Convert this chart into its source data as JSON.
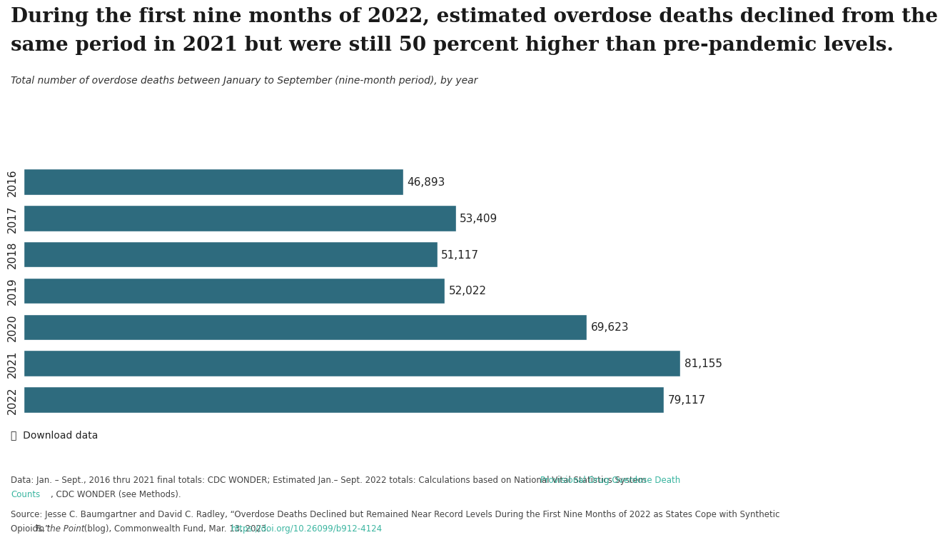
{
  "title_line1": "During the first nine months of 2022, estimated overdose deaths declined from the",
  "title_line2": "same period in 2021 but were still 50 percent higher than pre-pandemic levels.",
  "subtitle": "Total number of overdose deaths between January to September (nine-month period), by year",
  "years": [
    "2016",
    "2017",
    "2018",
    "2019",
    "2020",
    "2021",
    "2022"
  ],
  "values": [
    46893,
    53409,
    51117,
    52022,
    69623,
    81155,
    79117
  ],
  "labels": [
    "46,893",
    "53,409",
    "51,117",
    "52,022",
    "69,623",
    "81,155",
    "79,117"
  ],
  "bar_color": "#2e6b7e",
  "background_color": "#ffffff",
  "xlim": [
    0,
    90000
  ],
  "download_text": "⤓  Download data",
  "footnote_data": "Data: Jan. – Sept., 2016 thru 2021 final totals: CDC WONDER; Estimated Jan.– Sept. 2022 totals: Calculations based on National Vital Statistics System ",
  "footnote_link1": "Provisional Drug Overdose Death",
  "footnote_link1b": "Counts",
  "footnote_data2": ", CDC WONDER (see Methods).",
  "footnote_source": "Source: Jesse C. Baumgartner and David C. Radley, “Overdose Deaths Declined but Remained Near Record Levels During the First Nine Months of 2022 as States Cope with Synthetic",
  "footnote_source_line2": "Opioids,” ",
  "footnote_source_italic": "To the Point",
  "footnote_source2": " (blog), Commonwealth Fund, Mar. 13, 2023. ",
  "footnote_link2": "https://doi.org/10.26099/b912-4124",
  "link_color": "#3ab5a0"
}
